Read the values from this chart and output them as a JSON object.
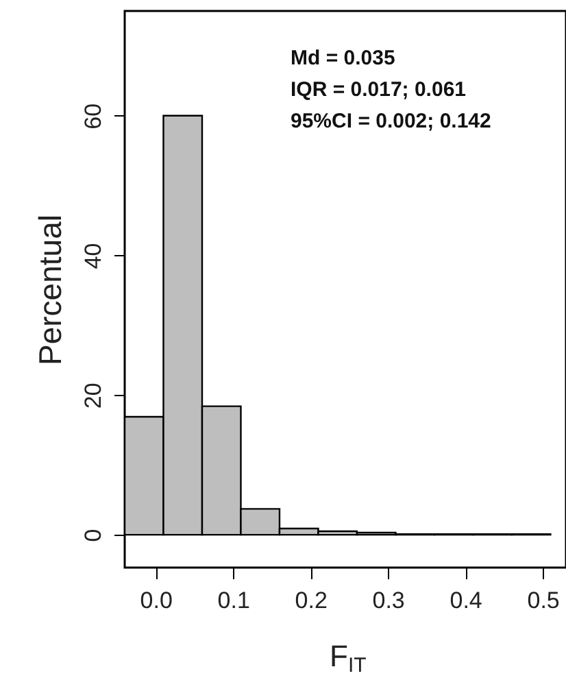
{
  "chart_data": {
    "type": "histogram",
    "xlabel": "F$_{IT}$",
    "ylabel": "Percentual",
    "bins": [
      -0.04,
      0.01,
      0.06,
      0.11,
      0.16,
      0.21,
      0.26,
      0.31,
      0.36,
      0.41,
      0.46,
      0.51
    ],
    "values": [
      16.9,
      60,
      18.4,
      3.7,
      0.9,
      0.5,
      0.3,
      0.1,
      0.1,
      0.1,
      0.1
    ],
    "color": "#bebebe",
    "xlim": [
      -0.04,
      0.53
    ],
    "ylim": [
      -4.7,
      75
    ],
    "xticks": [
      {
        "value": 0,
        "label": "0.0"
      },
      0.1,
      0.2,
      0.3,
      0.4,
      0.5
    ],
    "yticks": [
      0,
      20,
      40,
      60
    ],
    "grid": false,
    "annotations": [
      "Md = 0.035",
      "IQR = 0.017; 0.061",
      "95%CI = 0.002; 0.142"
    ]
  }
}
